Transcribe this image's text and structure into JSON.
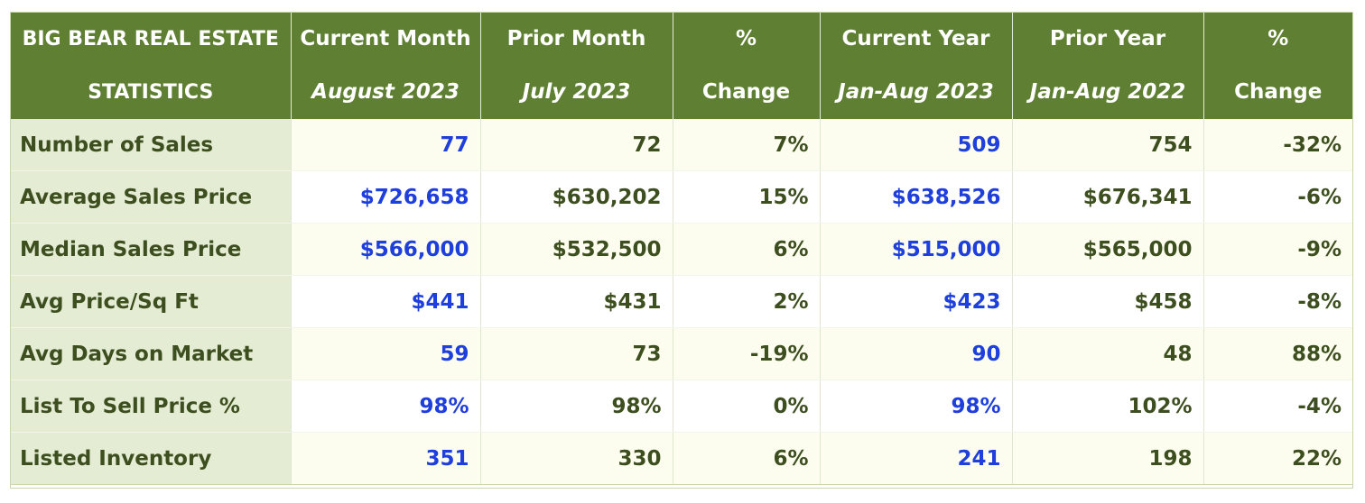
{
  "header": {
    "title_line1": "BIG BEAR REAL ESTATE",
    "title_line2": "STATISTICS",
    "columns": [
      {
        "line1": "Current Month",
        "line2": "August 2023"
      },
      {
        "line1": "Prior Month",
        "line2": "July 2023"
      },
      {
        "line1": "%",
        "line2": "Change"
      },
      {
        "line1": "Current Year",
        "line2": "Jan-Aug 2023"
      },
      {
        "line1": "Prior Year",
        "line2": "Jan-Aug 2022"
      },
      {
        "line1": "%",
        "line2": "Change"
      }
    ]
  },
  "rows": [
    {
      "label": "Number of Sales",
      "values": [
        "77",
        "72",
        "7%",
        "509",
        "754",
        "-32%"
      ]
    },
    {
      "label": "Average Sales Price",
      "values": [
        "$726,658",
        "$630,202",
        "15%",
        "$638,526",
        "$676,341",
        "-6%"
      ]
    },
    {
      "label": "Median Sales Price",
      "values": [
        "$566,000",
        "$532,500",
        "6%",
        "$515,000",
        "$565,000",
        "-9%"
      ]
    },
    {
      "label": "Avg Price/Sq Ft",
      "values": [
        "$441",
        "$431",
        "2%",
        "$423",
        "$458",
        "-8%"
      ]
    },
    {
      "label": "Avg Days on Market",
      "values": [
        "59",
        "73",
        "-19%",
        "90",
        "48",
        "88%"
      ]
    },
    {
      "label": "List To Sell Price %",
      "values": [
        "98%",
        "98%",
        "0%",
        "98%",
        "102%",
        "-4%"
      ]
    },
    {
      "label": "Listed Inventory",
      "values": [
        "351",
        "330",
        "6%",
        "241",
        "198",
        "22%"
      ]
    }
  ],
  "colors": {
    "header_bg": "#5f7f33",
    "label_bg": "#e4ecd3",
    "current_value_text": "#1e3fdc",
    "default_text": "#3d4e1f"
  }
}
